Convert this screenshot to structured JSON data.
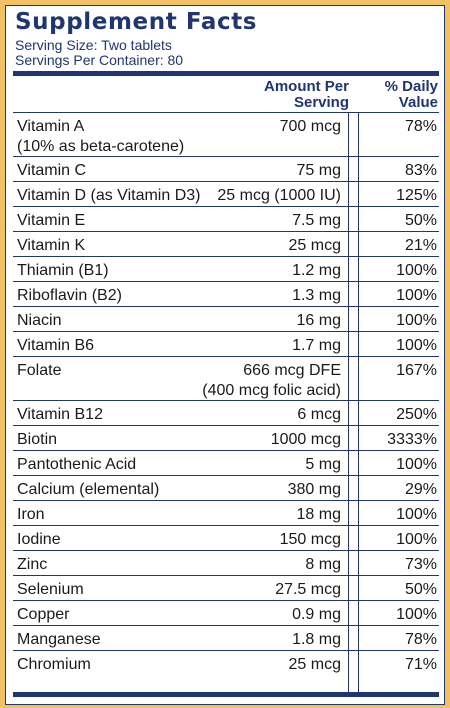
{
  "label": {
    "title": "Supplement Facts",
    "serving_size": "Serving Size: Two tablets",
    "servings_per_container": "Servings Per Container: 80",
    "header_amount": "Amount Per\nServing",
    "header_dv": "% Daily\nValue"
  },
  "nutrients": [
    {
      "name": "Vitamin A\n  (10% as beta-carotene)",
      "amount": "700 mcg",
      "dv": "78%"
    },
    {
      "name": "Vitamin C",
      "amount": "75 mg",
      "dv": "83%"
    },
    {
      "name": "Vitamin D (as Vitamin D3)",
      "amount": "25 mcg (1000 IU)",
      "dv": "125%"
    },
    {
      "name": "Vitamin E",
      "amount": "7.5 mg",
      "dv": "50%"
    },
    {
      "name": "Vitamin K",
      "amount": "25 mcg",
      "dv": "21%"
    },
    {
      "name": "Thiamin (B1)",
      "amount": "1.2 mg",
      "dv": "100%"
    },
    {
      "name": "Riboflavin (B2)",
      "amount": "1.3 mg",
      "dv": "100%"
    },
    {
      "name": "Niacin",
      "amount": "16 mg",
      "dv": "100%"
    },
    {
      "name": "Vitamin B6",
      "amount": "1.7 mg",
      "dv": "100%"
    },
    {
      "name": "Folate",
      "amount": "666 mcg DFE\n(400 mcg folic acid)",
      "dv": "167%"
    },
    {
      "name": "Vitamin B12",
      "amount": "6 mcg",
      "dv": "250%"
    },
    {
      "name": "Biotin",
      "amount": "1000 mcg",
      "dv": "3333%"
    },
    {
      "name": "Pantothenic Acid",
      "amount": "5 mg",
      "dv": "100%"
    },
    {
      "name": "Calcium (elemental)",
      "amount": "380 mg",
      "dv": "29%"
    },
    {
      "name": "Iron",
      "amount": "18 mg",
      "dv": "100%"
    },
    {
      "name": "Iodine",
      "amount": "150 mcg",
      "dv": "100%"
    },
    {
      "name": "Zinc",
      "amount": "8 mg",
      "dv": "73%"
    },
    {
      "name": "Selenium",
      "amount": "27.5 mcg",
      "dv": "50%"
    },
    {
      "name": "Copper",
      "amount": "0.9 mg",
      "dv": "100%"
    },
    {
      "name": "Manganese",
      "amount": "1.8 mg",
      "dv": "78%"
    },
    {
      "name": "Chromium",
      "amount": "25 mcg",
      "dv": "71%"
    }
  ],
  "colors": {
    "navy": "#1f3673",
    "gold": "#f2c163",
    "text": "#1a1a1a"
  }
}
